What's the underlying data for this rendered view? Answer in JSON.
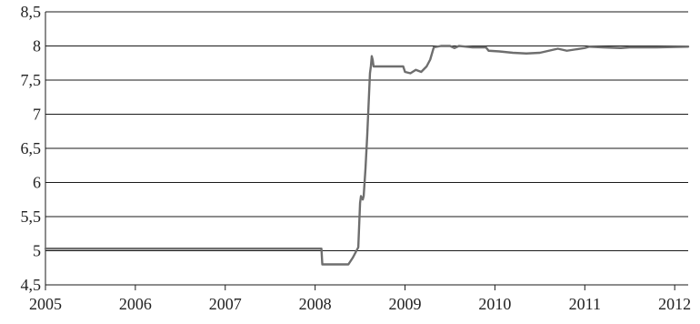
{
  "chart_data": {
    "type": "line",
    "title": "",
    "xlabel": "",
    "ylabel": "",
    "xlim": [
      2005,
      2012.15
    ],
    "ylim": [
      4.5,
      8.5
    ],
    "grid": "horizontal",
    "x_ticks": [
      "2005",
      "2006",
      "2007",
      "2008",
      "2009",
      "2010",
      "2011",
      "2012"
    ],
    "y_ticks": [
      "4,5",
      "5",
      "5,5",
      "6",
      "6,5",
      "7",
      "7,5",
      "8",
      "8,5"
    ],
    "series": [
      {
        "color": "#6e6e6e",
        "points": [
          [
            2005.0,
            5.03
          ],
          [
            2008.07,
            5.03
          ],
          [
            2008.08,
            4.8
          ],
          [
            2008.37,
            4.8
          ],
          [
            2008.42,
            4.9
          ],
          [
            2008.48,
            5.05
          ],
          [
            2008.5,
            5.7
          ],
          [
            2008.51,
            5.8
          ],
          [
            2008.53,
            5.75
          ],
          [
            2008.54,
            5.8
          ],
          [
            2008.56,
            6.2
          ],
          [
            2008.58,
            6.7
          ],
          [
            2008.6,
            7.3
          ],
          [
            2008.61,
            7.6
          ],
          [
            2008.62,
            7.7
          ],
          [
            2008.63,
            7.85
          ],
          [
            2008.64,
            7.8
          ],
          [
            2008.65,
            7.7
          ],
          [
            2008.98,
            7.7
          ],
          [
            2009.0,
            7.62
          ],
          [
            2009.06,
            7.6
          ],
          [
            2009.12,
            7.65
          ],
          [
            2009.18,
            7.62
          ],
          [
            2009.24,
            7.7
          ],
          [
            2009.28,
            7.8
          ],
          [
            2009.32,
            7.98
          ],
          [
            2009.4,
            8.0
          ],
          [
            2009.5,
            8.0
          ],
          [
            2009.55,
            7.97
          ],
          [
            2009.6,
            8.0
          ],
          [
            2009.75,
            7.98
          ],
          [
            2009.9,
            7.98
          ],
          [
            2009.93,
            7.93
          ],
          [
            2010.05,
            7.92
          ],
          [
            2010.2,
            7.9
          ],
          [
            2010.35,
            7.89
          ],
          [
            2010.5,
            7.9
          ],
          [
            2010.6,
            7.93
          ],
          [
            2010.7,
            7.96
          ],
          [
            2010.8,
            7.93
          ],
          [
            2010.9,
            7.95
          ],
          [
            2011.0,
            7.97
          ],
          [
            2011.05,
            7.99
          ],
          [
            2011.2,
            7.98
          ],
          [
            2011.4,
            7.97
          ],
          [
            2011.5,
            7.98
          ],
          [
            2011.8,
            7.98
          ],
          [
            2012.15,
            7.99
          ]
        ]
      }
    ]
  }
}
